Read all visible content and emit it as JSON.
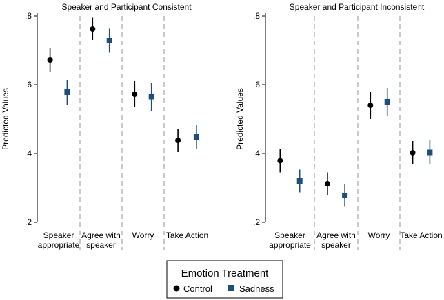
{
  "chart_data": {
    "type": "scatter",
    "legend": {
      "title": "Emotion Treatment",
      "position": "bottom-center",
      "items": [
        {
          "name": "Control",
          "marker": "circle",
          "color": "#000000"
        },
        {
          "name": "Sadness",
          "marker": "square",
          "color": "#1f4e79"
        }
      ]
    },
    "panels": [
      {
        "title": "Speaker and Participant Consistent",
        "ylabel": "Predicted Values",
        "ylim": [
          0.2,
          0.8
        ],
        "yticks": [
          ".2",
          ".4",
          ".6",
          ".8"
        ],
        "grid": false,
        "categories": [
          [
            "Speaker",
            "appropriate"
          ],
          [
            "Agree with",
            "speaker"
          ],
          [
            "Worry"
          ],
          [
            "Take Action"
          ]
        ],
        "series": [
          {
            "name": "Control",
            "values": [
              0.672,
              0.762,
              0.572,
              0.438
            ],
            "ci_low": [
              0.638,
              0.73,
              0.534,
              0.404
            ],
            "ci_high": [
              0.706,
              0.795,
              0.61,
              0.472
            ]
          },
          {
            "name": "Sadness",
            "values": [
              0.578,
              0.728,
              0.565,
              0.448
            ],
            "ci_low": [
              0.542,
              0.693,
              0.524,
              0.412
            ],
            "ci_high": [
              0.614,
              0.763,
              0.606,
              0.484
            ]
          }
        ]
      },
      {
        "title": "Speaker and Participant Inconsistent",
        "ylabel": "Predicted Values",
        "ylim": [
          0.2,
          0.8
        ],
        "yticks": [
          ".2",
          ".4",
          ".6",
          ".8"
        ],
        "grid": false,
        "categories": [
          [
            "Speaker",
            "appropriate"
          ],
          [
            "Agree with",
            "speaker"
          ],
          [
            "Worry"
          ],
          [
            "Take Action"
          ]
        ],
        "series": [
          {
            "name": "Control",
            "values": [
              0.379,
              0.312,
              0.54,
              0.402
            ],
            "ci_low": [
              0.345,
              0.28,
              0.5,
              0.368
            ],
            "ci_high": [
              0.413,
              0.345,
              0.58,
              0.436
            ]
          },
          {
            "name": "Sadness",
            "values": [
              0.32,
              0.278,
              0.55,
              0.403
            ],
            "ci_low": [
              0.287,
              0.245,
              0.51,
              0.368
            ],
            "ci_high": [
              0.353,
              0.311,
              0.59,
              0.438
            ]
          }
        ]
      }
    ]
  }
}
